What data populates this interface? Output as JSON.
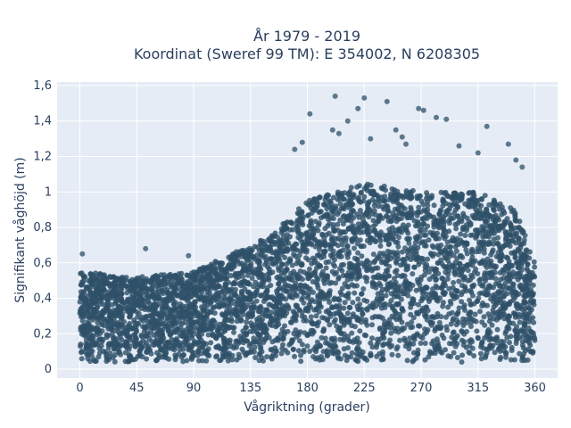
{
  "chart_data": {
    "type": "scatter",
    "title_line1": "År 1979 - 2019",
    "title_line2": "Koordinat (Sweref 99 TM): E 354002, N 6208305",
    "xlabel": "Vågriktning (grader)",
    "ylabel": "Signifikant våghöjd (m)",
    "xlim": [
      -18,
      378
    ],
    "ylim": [
      -0.05,
      1.62
    ],
    "x_ticks": [
      0,
      45,
      90,
      135,
      180,
      225,
      270,
      315,
      360
    ],
    "x_tick_labels": [
      "0",
      "45",
      "90",
      "135",
      "180",
      "225",
      "270",
      "315",
      "360"
    ],
    "y_ticks": [
      0,
      0.2,
      0.4,
      0.6,
      0.8,
      1,
      1.2,
      1.4,
      1.6
    ],
    "y_tick_labels": [
      "0",
      "0,2",
      "0,4",
      "0,6",
      "0,8",
      "1",
      "1,2",
      "1,4",
      "1,6"
    ],
    "grid": true,
    "marker_color": "#2e5068",
    "plot_bg": "#e5ecf6",
    "x_range": [
      0,
      360
    ],
    "upper_envelope": [
      {
        "x": 0,
        "y": 0.55
      },
      {
        "x": 45,
        "y": 0.52
      },
      {
        "x": 90,
        "y": 0.55
      },
      {
        "x": 120,
        "y": 0.65
      },
      {
        "x": 150,
        "y": 0.75
      },
      {
        "x": 180,
        "y": 0.95
      },
      {
        "x": 225,
        "y": 1.05
      },
      {
        "x": 270,
        "y": 1.0
      },
      {
        "x": 315,
        "y": 1.0
      },
      {
        "x": 345,
        "y": 0.9
      },
      {
        "x": 360,
        "y": 0.6
      }
    ],
    "outliers": [
      {
        "x": 2,
        "y": 0.65
      },
      {
        "x": 52,
        "y": 0.68
      },
      {
        "x": 86,
        "y": 0.64
      },
      {
        "x": 182,
        "y": 1.44
      },
      {
        "x": 202,
        "y": 1.54
      },
      {
        "x": 212,
        "y": 1.4
      },
      {
        "x": 225,
        "y": 1.53
      },
      {
        "x": 220,
        "y": 1.47
      },
      {
        "x": 243,
        "y": 1.51
      },
      {
        "x": 268,
        "y": 1.47
      },
      {
        "x": 272,
        "y": 1.46
      },
      {
        "x": 282,
        "y": 1.42
      },
      {
        "x": 290,
        "y": 1.41
      },
      {
        "x": 300,
        "y": 1.26
      },
      {
        "x": 322,
        "y": 1.37
      },
      {
        "x": 339,
        "y": 1.27
      },
      {
        "x": 200,
        "y": 1.35
      },
      {
        "x": 205,
        "y": 1.33
      },
      {
        "x": 230,
        "y": 1.3
      },
      {
        "x": 250,
        "y": 1.35
      },
      {
        "x": 255,
        "y": 1.31
      },
      {
        "x": 258,
        "y": 1.27
      },
      {
        "x": 176,
        "y": 1.28
      },
      {
        "x": 170,
        "y": 1.24
      },
      {
        "x": 315,
        "y": 1.22
      },
      {
        "x": 350,
        "y": 1.14
      },
      {
        "x": 345,
        "y": 1.18
      }
    ]
  }
}
